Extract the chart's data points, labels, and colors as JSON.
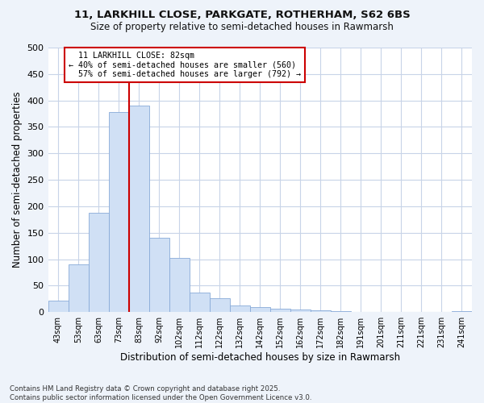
{
  "title_line1": "11, LARKHILL CLOSE, PARKGATE, ROTHERHAM, S62 6BS",
  "title_line2": "Size of property relative to semi-detached houses in Rawmarsh",
  "xlabel": "Distribution of semi-detached houses by size in Rawmarsh",
  "ylabel": "Number of semi-detached properties",
  "footnote": "Contains HM Land Registry data © Crown copyright and database right 2025.\nContains public sector information licensed under the Open Government Licence v3.0.",
  "bar_color": "#d0e0f5",
  "bar_edge_color": "#88aad8",
  "categories": [
    "43sqm",
    "53sqm",
    "63sqm",
    "73sqm",
    "83sqm",
    "92sqm",
    "102sqm",
    "112sqm",
    "122sqm",
    "132sqm",
    "142sqm",
    "152sqm",
    "162sqm",
    "172sqm",
    "182sqm",
    "191sqm",
    "201sqm",
    "211sqm",
    "221sqm",
    "231sqm",
    "241sqm"
  ],
  "values": [
    22,
    90,
    187,
    378,
    390,
    141,
    102,
    37,
    26,
    12,
    9,
    7,
    5,
    4,
    2,
    1,
    0,
    1,
    0,
    1,
    2
  ],
  "property_label": "11 LARKHILL CLOSE: 82sqm",
  "pct_smaller": 40,
  "n_smaller": 560,
  "pct_larger": 57,
  "n_larger": 792,
  "vline_color": "#cc0000",
  "annotation_box_edge": "#cc0000",
  "grid_color": "#c8d4e8",
  "background_color": "#ffffff",
  "fig_background_color": "#eef3fa",
  "ylim": [
    0,
    500
  ],
  "yticks": [
    0,
    50,
    100,
    150,
    200,
    250,
    300,
    350,
    400,
    450,
    500
  ]
}
